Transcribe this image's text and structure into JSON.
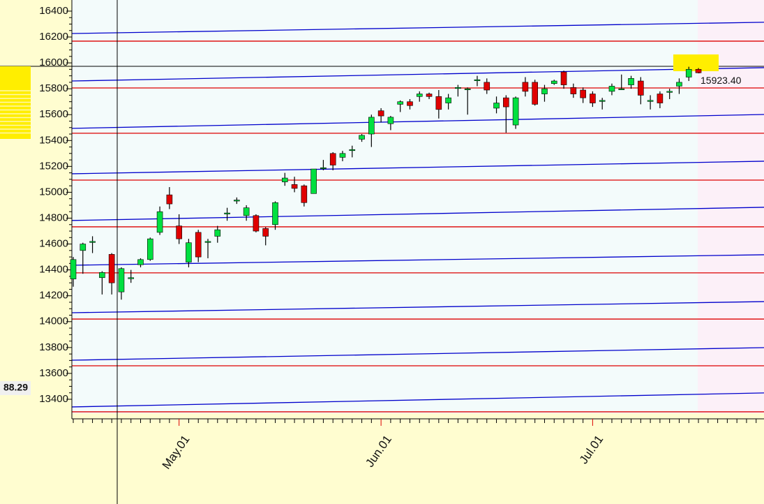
{
  "chart_data": {
    "type": "candlestick",
    "categories": [
      null,
      null,
      null,
      null,
      null,
      null,
      null,
      null,
      null,
      null,
      null,
      "May.01",
      null,
      null,
      null,
      null,
      null,
      null,
      null,
      null,
      null,
      null,
      null,
      null,
      null,
      null,
      null,
      null,
      null,
      null,
      null,
      null,
      "Jun.01",
      null,
      null,
      null,
      null,
      null,
      null,
      null,
      null,
      null,
      null,
      null,
      null,
      null,
      null,
      null,
      null,
      null,
      null,
      null,
      null,
      null,
      "Jul.01",
      null,
      null,
      null,
      null,
      null,
      null,
      null,
      null,
      null,
      null,
      null
    ],
    "open": [
      14330,
      14550,
      14620,
      14340,
      14520,
      14230,
      14340,
      14440,
      14480,
      14690,
      14980,
      14740,
      14460,
      14690,
      14620,
      14660,
      14840,
      14940,
      14820,
      14820,
      14720,
      14750,
      15080,
      15060,
      15050,
      14990,
      15190,
      15300,
      15270,
      15330,
      15410,
      15450,
      15630,
      15530,
      15680,
      15700,
      15740,
      15760,
      15740,
      15690,
      15810,
      15800,
      15870,
      15850,
      15650,
      15730,
      15520,
      15850,
      15850,
      15760,
      15840,
      15930,
      15810,
      15790,
      15760,
      15710,
      15780,
      15800,
      15830,
      15860,
      15710,
      15760,
      15780,
      15820,
      15890,
      15950
    ],
    "close": [
      14480,
      14600,
      14620,
      14380,
      14300,
      14410,
      14340,
      14480,
      14640,
      14850,
      14910,
      14640,
      14610,
      14500,
      14620,
      14710,
      14840,
      14940,
      14880,
      14700,
      14660,
      14920,
      15110,
      15030,
      14920,
      15180,
      15190,
      15210,
      15300,
      15330,
      15440,
      15580,
      15590,
      15580,
      15700,
      15670,
      15760,
      15740,
      15640,
      15730,
      15810,
      15800,
      15870,
      15790,
      15690,
      15660,
      15730,
      15780,
      15680,
      15800,
      15860,
      15830,
      15760,
      15730,
      15690,
      15710,
      15820,
      15800,
      15880,
      15750,
      15710,
      15690,
      15780,
      15850,
      15950,
      15923.4
    ],
    "high": [
      14500,
      14610,
      14660,
      14390,
      14530,
      14420,
      14400,
      14490,
      14650,
      14890,
      15040,
      14830,
      14640,
      14710,
      14640,
      14740,
      14880,
      14960,
      14900,
      14830,
      14730,
      14930,
      15150,
      15120,
      15060,
      15180,
      15250,
      15310,
      15320,
      15360,
      15450,
      15600,
      15650,
      15590,
      15710,
      15720,
      15780,
      15770,
      15790,
      15760,
      15830,
      15810,
      15900,
      15880,
      15740,
      15750,
      15740,
      15890,
      15870,
      15830,
      15870,
      15940,
      15840,
      15810,
      15780,
      15730,
      15840,
      15910,
      15900,
      15890,
      15750,
      15780,
      15800,
      15880,
      15970,
      15960
    ],
    "low": [
      14270,
      14370,
      14530,
      14210,
      14210,
      14170,
      14300,
      14420,
      14470,
      14670,
      14870,
      14600,
      14420,
      14460,
      14490,
      14610,
      14780,
      14910,
      14780,
      14690,
      14590,
      14710,
      15050,
      15000,
      14890,
      14990,
      15170,
      15170,
      15240,
      15270,
      15390,
      15350,
      15540,
      15480,
      15620,
      15640,
      15700,
      15720,
      15570,
      15640,
      15740,
      15600,
      15820,
      15760,
      15610,
      15460,
      15490,
      15740,
      15670,
      15700,
      15830,
      15800,
      15730,
      15690,
      15660,
      15640,
      15750,
      15790,
      15800,
      15680,
      15640,
      15650,
      15720,
      15760,
      15860,
      15920
    ],
    "up_color": "#00e040",
    "down_color": "#e00000",
    "last_price_label": "15923.40",
    "cursor_label": "88.29",
    "ylim": [
      13292,
      16486
    ],
    "yticks": [
      13400,
      13600,
      13800,
      14000,
      14200,
      14400,
      14600,
      14800,
      15000,
      15200,
      15400,
      15600,
      15800,
      16000,
      16200,
      16400
    ],
    "lines": [
      {
        "color": "#0000cc",
        "values": [
          16227,
          16314
        ]
      },
      {
        "color": "#0000cc",
        "values": [
          15860,
          15963
        ]
      },
      {
        "color": "#0000cc",
        "values": [
          15494,
          15601
        ]
      },
      {
        "color": "#0000cc",
        "values": [
          15143,
          15240
        ]
      },
      {
        "color": "#0000cc",
        "values": [
          14782,
          14884
        ]
      },
      {
        "color": "#0000cc",
        "values": [
          14436,
          14517
        ]
      },
      {
        "color": "#0000cc",
        "values": [
          14069,
          14155
        ]
      },
      {
        "color": "#0000cc",
        "values": [
          13702,
          13799
        ]
      },
      {
        "color": "#0000cc",
        "values": [
          13341,
          13449
        ]
      },
      {
        "color": "#dd0000",
        "values": [
          16168,
          16168
        ]
      },
      {
        "color": "#dd0000",
        "values": [
          15806,
          15806
        ]
      },
      {
        "color": "#dd0000",
        "values": [
          15456,
          15456
        ]
      },
      {
        "color": "#dd0000",
        "values": [
          15094,
          15094
        ]
      },
      {
        "color": "#dd0000",
        "values": [
          14733,
          14733
        ]
      },
      {
        "color": "#dd0000",
        "values": [
          14377,
          14377
        ]
      },
      {
        "color": "#dd0000",
        "values": [
          14020,
          14020
        ]
      },
      {
        "color": "#dd0000",
        "values": [
          13659,
          13659
        ]
      },
      {
        "color": "#dd0000",
        "values": [
          13303,
          13303
        ]
      }
    ]
  }
}
